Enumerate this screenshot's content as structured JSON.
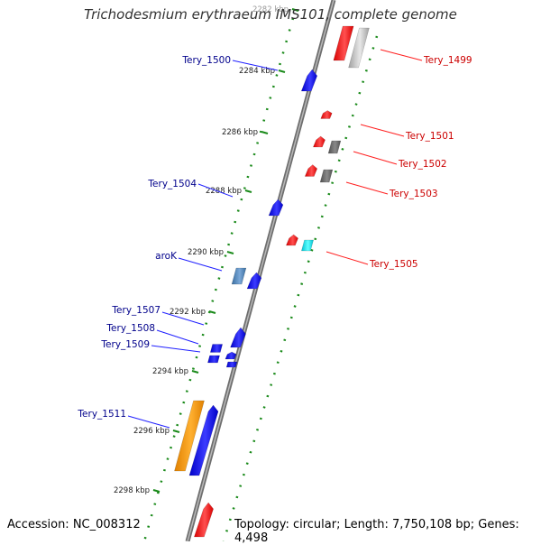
{
  "title": "Trichodesmium erythraeum IMS101, complete genome",
  "footer": {
    "accession": "Accession: NC_008312",
    "summary": "Topology: circular; Length: 7,750,108 bp; Genes: 4,498"
  },
  "ticks": [
    {
      "label": "2282 kbp"
    },
    {
      "label": "2284 kbp"
    },
    {
      "label": "2286 kbp"
    },
    {
      "label": "2288 kbp"
    },
    {
      "label": "2290 kbp"
    },
    {
      "label": "2292 kbp"
    },
    {
      "label": "2294 kbp"
    },
    {
      "label": "2296 kbp"
    },
    {
      "label": "2298 kbp"
    }
  ],
  "genes_forward": [
    {
      "label": "Tery_1499",
      "color": "#ff0000",
      "secondary_color": "#c8c8c8"
    },
    {
      "label": "Tery_1501",
      "color": "#ff0000"
    },
    {
      "label": "Tery_1502",
      "color": "#ff0000",
      "secondary_color": "#666666"
    },
    {
      "label": "Tery_1503",
      "color": "#ff0000",
      "secondary_color": "#666666"
    },
    {
      "label": "Tery_1505",
      "color": "#ff0000",
      "secondary_color": "#00e5ee"
    }
  ],
  "genes_reverse": [
    {
      "label": "Tery_1500",
      "color": "#0000ff"
    },
    {
      "label": "Tery_1504",
      "color": "#0000ff"
    },
    {
      "label": "aroK",
      "color": "#0000ff",
      "secondary_color": "#4682b4"
    },
    {
      "label": "Tery_1507",
      "color": "#0000ff"
    },
    {
      "label": "Tery_1508",
      "color": "#0000ff"
    },
    {
      "label": "Tery_1509",
      "color": "#0000ff"
    },
    {
      "label": "Tery_1511",
      "color": "#0000ff",
      "secondary_color": "#ff9900"
    }
  ],
  "colors": {
    "backbone": "#808080",
    "tick_dots": "#1a8a1a",
    "forward_label": "#cc0000",
    "reverse_label": "#00008b"
  }
}
